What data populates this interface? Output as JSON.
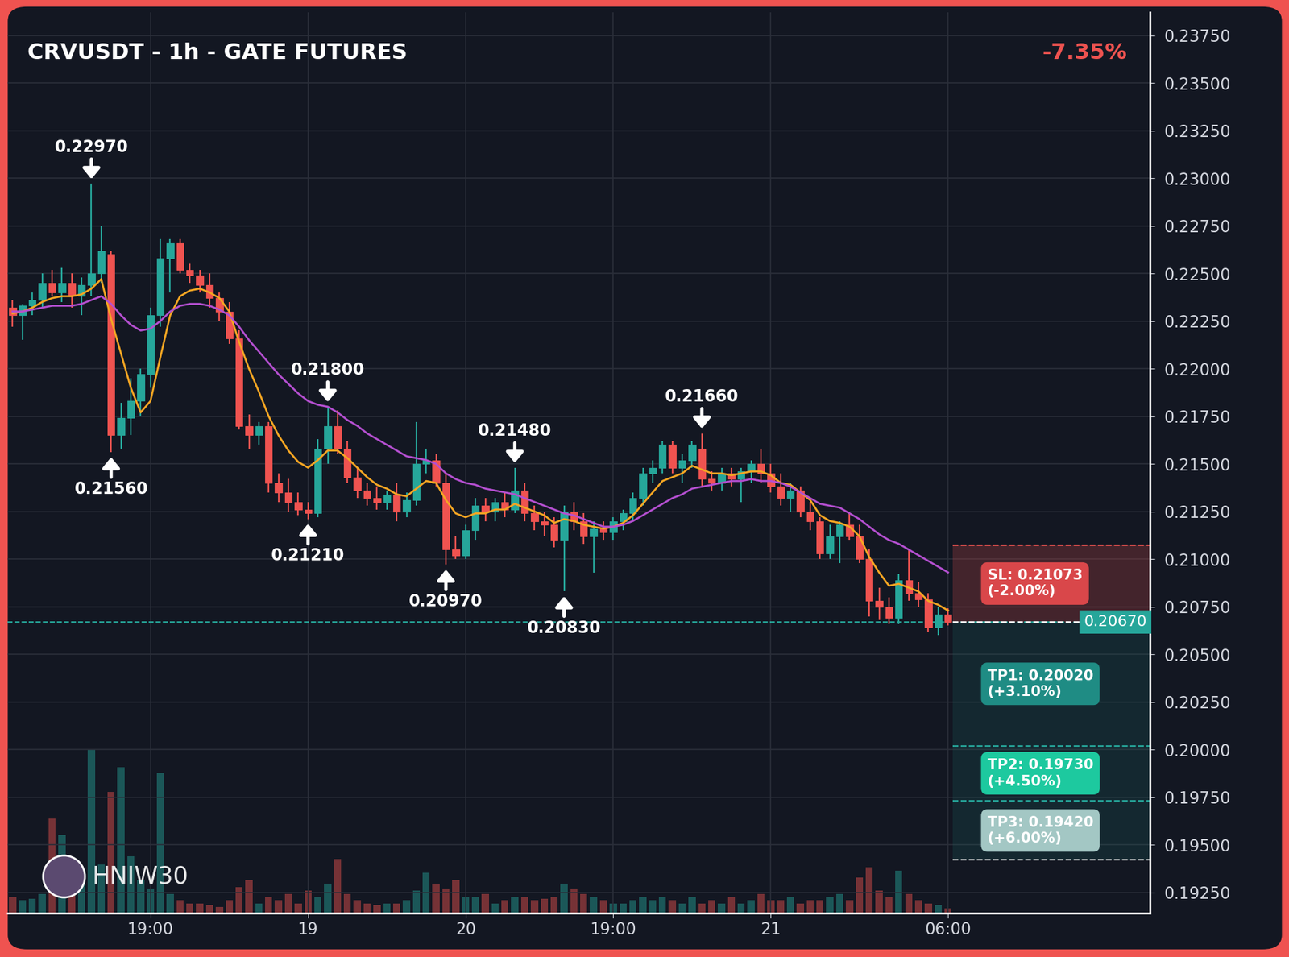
{
  "chart_data": {
    "type": "candlestick",
    "title": "CRVUSDT - 1h - GATE FUTURES",
    "change_label": "-7.35%",
    "watermark": "HNIW30",
    "grid": true,
    "categories": [
      null,
      null,
      null,
      null,
      null,
      null,
      null,
      null,
      null,
      null,
      null,
      null,
      null,
      null,
      "19:00",
      null,
      null,
      null,
      null,
      null,
      null,
      null,
      null,
      null,
      null,
      null,
      null,
      null,
      null,
      null,
      "19",
      null,
      null,
      null,
      null,
      null,
      null,
      null,
      null,
      null,
      null,
      null,
      null,
      null,
      null,
      null,
      "20",
      null,
      null,
      null,
      null,
      null,
      null,
      null,
      null,
      null,
      null,
      null,
      null,
      null,
      null,
      "19:00",
      null,
      null,
      null,
      null,
      null,
      null,
      null,
      null,
      null,
      null,
      null,
      null,
      null,
      null,
      null,
      "21",
      null,
      null,
      null,
      null,
      null,
      null,
      null,
      null,
      null,
      null,
      null,
      null,
      null,
      null,
      null,
      null,
      null,
      "06:00"
    ],
    "open": [
      0.2232,
      0.2228,
      0.2233,
      0.2236,
      0.2245,
      0.224,
      0.2245,
      0.2238,
      0.2244,
      0.225,
      0.226,
      0.2165,
      0.2174,
      0.2183,
      0.2197,
      0.2228,
      0.2258,
      0.2266,
      0.2252,
      0.2249,
      0.2244,
      0.2237,
      0.223,
      0.2216,
      0.217,
      0.2165,
      0.217,
      0.214,
      0.2135,
      0.213,
      0.2126,
      0.2124,
      0.2158,
      0.217,
      0.2158,
      0.2143,
      0.2136,
      0.2132,
      0.213,
      0.2134,
      0.2125,
      0.2131,
      0.215,
      0.2152,
      0.214,
      0.2105,
      0.2102,
      0.2115,
      0.2128,
      0.2125,
      0.213,
      0.2126,
      0.2136,
      0.2124,
      0.212,
      0.2118,
      0.211,
      0.2125,
      0.212,
      0.2112,
      0.2116,
      0.2114,
      0.212,
      0.2124,
      0.2132,
      0.2145,
      0.2148,
      0.216,
      0.2148,
      0.2152,
      0.2158,
      0.2142,
      0.214,
      0.2145,
      0.2142,
      0.2146,
      0.215,
      0.2145,
      0.2138,
      0.2132,
      0.2136,
      0.2125,
      0.212,
      0.2103,
      0.2112,
      0.2118,
      0.2112,
      0.21,
      0.2078,
      0.2075,
      0.2069,
      0.2089,
      0.2082,
      0.2079,
      0.2064,
      0.2071
    ],
    "high": [
      0.2236,
      0.2234,
      0.224,
      0.225,
      0.2252,
      0.2253,
      0.225,
      0.2248,
      0.2297,
      0.2275,
      0.2262,
      0.2182,
      0.2195,
      0.22,
      0.2232,
      0.2268,
      0.2268,
      0.2268,
      0.2255,
      0.2252,
      0.225,
      0.224,
      0.2235,
      0.222,
      0.2176,
      0.2172,
      0.2172,
      0.2145,
      0.2142,
      0.2135,
      0.213,
      0.2163,
      0.218,
      0.2178,
      0.2162,
      0.2148,
      0.214,
      0.2138,
      0.2136,
      0.214,
      0.2135,
      0.2172,
      0.2158,
      0.2155,
      0.2145,
      0.2112,
      0.2118,
      0.2132,
      0.2132,
      0.2132,
      0.2135,
      0.2148,
      0.214,
      0.2128,
      0.2125,
      0.2122,
      0.2128,
      0.213,
      0.2124,
      0.212,
      0.212,
      0.2122,
      0.2126,
      0.2135,
      0.2148,
      0.2152,
      0.2162,
      0.2162,
      0.2155,
      0.2162,
      0.2166,
      0.2146,
      0.2148,
      0.2148,
      0.2148,
      0.2152,
      0.2158,
      0.215,
      0.2145,
      0.214,
      0.2138,
      0.213,
      0.2122,
      0.2118,
      0.212,
      0.2125,
      0.2118,
      0.2105,
      0.2085,
      0.208,
      0.2092,
      0.2105,
      0.2088,
      0.2082,
      0.2075,
      0.2074
    ],
    "low": [
      0.2222,
      0.2215,
      0.2228,
      0.2232,
      0.2238,
      0.2235,
      0.2232,
      0.2228,
      0.2238,
      0.2245,
      0.2156,
      0.2158,
      0.2165,
      0.2175,
      0.219,
      0.2222,
      0.224,
      0.225,
      0.2245,
      0.224,
      0.2232,
      0.2225,
      0.2213,
      0.2168,
      0.2158,
      0.216,
      0.2135,
      0.213,
      0.2125,
      0.2123,
      0.2121,
      0.2122,
      0.215,
      0.2155,
      0.214,
      0.2132,
      0.2128,
      0.2126,
      0.2126,
      0.212,
      0.2122,
      0.2128,
      0.2145,
      0.2138,
      0.2097,
      0.21,
      0.21,
      0.211,
      0.212,
      0.212,
      0.2122,
      0.2124,
      0.212,
      0.2115,
      0.2112,
      0.2106,
      0.2083,
      0.2115,
      0.2108,
      0.2093,
      0.211,
      0.211,
      0.2115,
      0.212,
      0.2128,
      0.214,
      0.2145,
      0.2145,
      0.214,
      0.2148,
      0.2138,
      0.2136,
      0.2136,
      0.2138,
      0.213,
      0.214,
      0.214,
      0.2135,
      0.2128,
      0.2125,
      0.2122,
      0.2115,
      0.21,
      0.21,
      0.2098,
      0.211,
      0.2098,
      0.207,
      0.2068,
      0.2066,
      0.2066,
      0.2078,
      0.2075,
      0.2062,
      0.206,
      0.2065
    ],
    "close": [
      0.2228,
      0.2233,
      0.2236,
      0.2245,
      0.224,
      0.2245,
      0.2238,
      0.2244,
      0.225,
      0.2262,
      0.2165,
      0.2174,
      0.2183,
      0.2197,
      0.2228,
      0.2258,
      0.2266,
      0.2252,
      0.2249,
      0.2244,
      0.2237,
      0.223,
      0.2216,
      0.217,
      0.2165,
      0.217,
      0.214,
      0.2135,
      0.213,
      0.2126,
      0.2124,
      0.2158,
      0.217,
      0.2158,
      0.2143,
      0.2136,
      0.2132,
      0.213,
      0.2134,
      0.2125,
      0.2131,
      0.215,
      0.2152,
      0.214,
      0.2105,
      0.2102,
      0.2115,
      0.2128,
      0.2125,
      0.213,
      0.2126,
      0.2136,
      0.2124,
      0.212,
      0.2118,
      0.211,
      0.2125,
      0.212,
      0.2112,
      0.2116,
      0.2114,
      0.212,
      0.2124,
      0.2132,
      0.2145,
      0.2148,
      0.216,
      0.2148,
      0.2152,
      0.216,
      0.2142,
      0.214,
      0.2145,
      0.2142,
      0.2146,
      0.215,
      0.2145,
      0.2138,
      0.2132,
      0.2136,
      0.2125,
      0.212,
      0.2103,
      0.2112,
      0.2118,
      0.2112,
      0.21,
      0.2078,
      0.2075,
      0.2069,
      0.2089,
      0.2082,
      0.2079,
      0.2064,
      0.2071,
      0.2067
    ],
    "volume": [
      10,
      8,
      9,
      12,
      58,
      48,
      18,
      22,
      100,
      30,
      74,
      89,
      35,
      20,
      15,
      86,
      12,
      8,
      6,
      6,
      5,
      4,
      8,
      16,
      20,
      6,
      10,
      8,
      12,
      6,
      14,
      10,
      18,
      33,
      12,
      8,
      6,
      5,
      6,
      6,
      8,
      14,
      25,
      18,
      15,
      20,
      10,
      10,
      12,
      6,
      8,
      10,
      10,
      8,
      9,
      10,
      18,
      15,
      12,
      10,
      8,
      6,
      6,
      8,
      10,
      8,
      10,
      8,
      6,
      10,
      6,
      8,
      6,
      10,
      6,
      8,
      12,
      8,
      8,
      10,
      6,
      8,
      8,
      10,
      12,
      8,
      22,
      28,
      14,
      10,
      26,
      12,
      8,
      6,
      5,
      3
    ],
    "volume_ylim": [
      0,
      550
    ],
    "moving_averages": [
      {
        "color": "#f5a623",
        "values": [
          0.2229,
          0.223,
          0.2232,
          0.2235,
          0.2237,
          0.2238,
          0.2238,
          0.2239,
          0.2242,
          0.2247,
          0.2226,
          0.2208,
          0.219,
          0.2177,
          0.2183,
          0.2206,
          0.2228,
          0.2238,
          0.2241,
          0.2242,
          0.224,
          0.2237,
          0.223,
          0.2214,
          0.22,
          0.2188,
          0.2175,
          0.2165,
          0.2157,
          0.2151,
          0.2148,
          0.2152,
          0.2157,
          0.2157,
          0.2153,
          0.2148,
          0.2143,
          0.2139,
          0.2137,
          0.2134,
          0.2133,
          0.2137,
          0.2141,
          0.214,
          0.2131,
          0.2124,
          0.2122,
          0.2124,
          0.2124,
          0.2126,
          0.2126,
          0.2129,
          0.2127,
          0.2125,
          0.2123,
          0.2119,
          0.2121,
          0.212,
          0.2118,
          0.2117,
          0.2116,
          0.2117,
          0.2119,
          0.2123,
          0.2129,
          0.2135,
          0.2141,
          0.2143,
          0.2145,
          0.2149,
          0.2147,
          0.2145,
          0.2145,
          0.2144,
          0.2145,
          0.2146,
          0.2146,
          0.2144,
          0.214,
          0.2139,
          0.2135,
          0.2131,
          0.2123,
          0.212,
          0.2119,
          0.2117,
          0.2112,
          0.2101,
          0.2093,
          0.2086,
          0.2087,
          0.2085,
          0.2083,
          0.2078,
          0.2076,
          0.2073
        ]
      },
      {
        "color": "#b44fd0",
        "values": [
          0.223,
          0.223,
          0.2231,
          0.2232,
          0.2233,
          0.2233,
          0.2233,
          0.2234,
          0.2236,
          0.2238,
          0.2234,
          0.2228,
          0.2223,
          0.222,
          0.2221,
          0.2225,
          0.223,
          0.2233,
          0.2234,
          0.2234,
          0.2233,
          0.2231,
          0.2228,
          0.2222,
          0.2215,
          0.2209,
          0.2203,
          0.2197,
          0.2192,
          0.2187,
          0.2183,
          0.2181,
          0.218,
          0.2177,
          0.2173,
          0.217,
          0.2166,
          0.2163,
          0.216,
          0.2157,
          0.2154,
          0.2153,
          0.2152,
          0.215,
          0.2145,
          0.2142,
          0.214,
          0.2139,
          0.2137,
          0.2136,
          0.2135,
          0.2134,
          0.2132,
          0.213,
          0.2128,
          0.2126,
          0.2124,
          0.2123,
          0.2121,
          0.2119,
          0.2117,
          0.2117,
          0.2118,
          0.212,
          0.2123,
          0.2126,
          0.2129,
          0.2132,
          0.2134,
          0.2137,
          0.2138,
          0.2139,
          0.214,
          0.2141,
          0.2141,
          0.2142,
          0.2141,
          0.2141,
          0.214,
          0.2138,
          0.2135,
          0.2132,
          0.2129,
          0.2128,
          0.2127,
          0.2124,
          0.2121,
          0.2117,
          0.2113,
          0.211,
          0.2108,
          0.2105,
          0.2102,
          0.2099,
          0.2096,
          0.2093
        ]
      }
    ],
    "annotations": [
      {
        "label": "0.22970",
        "x": 8,
        "value": 0.2297,
        "side": "high"
      },
      {
        "label": "0.21560",
        "x": 10,
        "value": 0.2156,
        "side": "low"
      },
      {
        "label": "0.21800",
        "x": 32,
        "value": 0.218,
        "side": "high"
      },
      {
        "label": "0.21210",
        "x": 30,
        "value": 0.2121,
        "side": "low"
      },
      {
        "label": "0.21480",
        "x": 51,
        "value": 0.2148,
        "side": "high"
      },
      {
        "label": "0.20970",
        "x": 44,
        "value": 0.2097,
        "side": "low"
      },
      {
        "label": "0.21660",
        "x": 70,
        "value": 0.2166,
        "side": "high"
      },
      {
        "label": "0.20830",
        "x": 56,
        "value": 0.2083,
        "side": "low"
      }
    ],
    "trade": {
      "entry": {
        "value": 0.2067,
        "label": "0.20670"
      },
      "stop_loss": {
        "value": 0.21073,
        "label": "SL: 0.21073",
        "change": "(-2.00%)",
        "color": "#d9474a"
      },
      "take_profits": [
        {
          "value": 0.2002,
          "label": "TP1: 0.20020",
          "change": "(+3.10%)",
          "color": "#1f8c84"
        },
        {
          "value": 0.1973,
          "label": "TP2: 0.19730",
          "change": "(+4.50%)",
          "color": "#1dc99f"
        },
        {
          "value": 0.1942,
          "label": "TP3: 0.19420",
          "change": "(+6.00%)",
          "color": "#a3c7c4"
        }
      ]
    },
    "xlim": [
      -0.5,
      115.5
    ],
    "ylim": [
      0.1914,
      0.2387
    ],
    "yticks": [
      {
        "value": 0.1925,
        "label": "0.19250"
      },
      {
        "value": 0.195,
        "label": "0.19500"
      },
      {
        "value": 0.1975,
        "label": "0.19750"
      },
      {
        "value": 0.2,
        "label": "0.20000"
      },
      {
        "value": 0.2025,
        "label": "0.20250"
      },
      {
        "value": 0.205,
        "label": "0.20500"
      },
      {
        "value": 0.2075,
        "label": "0.20750"
      },
      {
        "value": 0.21,
        "label": "0.21000"
      },
      {
        "value": 0.2125,
        "label": "0.21250"
      },
      {
        "value": 0.215,
        "label": "0.21500"
      },
      {
        "value": 0.2175,
        "label": "0.21750"
      },
      {
        "value": 0.22,
        "label": "0.22000"
      },
      {
        "value": 0.2225,
        "label": "0.22250"
      },
      {
        "value": 0.225,
        "label": "0.22500"
      },
      {
        "value": 0.2275,
        "label": "0.22750"
      },
      {
        "value": 0.23,
        "label": "0.23000"
      },
      {
        "value": 0.2325,
        "label": "0.23250"
      },
      {
        "value": 0.235,
        "label": "0.23500"
      },
      {
        "value": 0.2375,
        "label": "0.23750"
      }
    ]
  }
}
